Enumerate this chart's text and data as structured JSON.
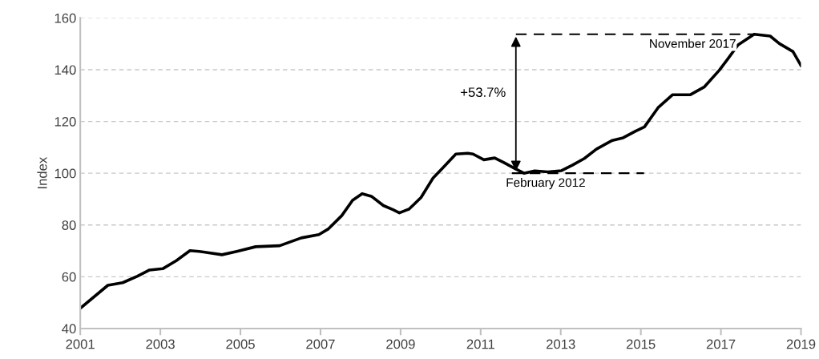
{
  "chart_data": {
    "type": "line",
    "ylabel": "Index",
    "x": [
      2001.0,
      2001.69,
      2002.06,
      2002.43,
      2002.73,
      2003.06,
      2003.4,
      2003.74,
      2003.97,
      2004.54,
      2004.91,
      2005.38,
      2005.98,
      2006.52,
      2006.96,
      2007.19,
      2007.53,
      2007.8,
      2008.04,
      2008.27,
      2008.57,
      2008.81,
      2008.97,
      2009.21,
      2009.51,
      2009.81,
      2010.05,
      2010.38,
      2010.68,
      2010.81,
      2011.08,
      2011.35,
      2011.58,
      2011.82,
      2012.08,
      2012.35,
      2012.68,
      2013.02,
      2013.29,
      2013.59,
      2013.89,
      2014.29,
      2014.56,
      2014.86,
      2015.09,
      2015.43,
      2015.79,
      2016.23,
      2016.59,
      2016.96,
      2017.16,
      2017.43,
      2017.83,
      2018.23,
      2018.46,
      2018.8,
      2019.0
    ],
    "series": [
      {
        "color": "#000000",
        "values": [
          47.8,
          56.7,
          57.7,
          60.2,
          62.6,
          63.1,
          66.2,
          70.1,
          69.8,
          68.5,
          69.8,
          71.6,
          72.0,
          75.0,
          76.3,
          78.4,
          83.6,
          89.5,
          92.1,
          91.1,
          87.5,
          85.9,
          84.7,
          86.1,
          90.6,
          98.1,
          102.0,
          107.4,
          107.7,
          107.4,
          105.2,
          105.9,
          104.1,
          102.1,
          100.0,
          100.9,
          100.5,
          101.0,
          103.1,
          105.7,
          109.3,
          112.7,
          113.7,
          116.2,
          117.9,
          125.3,
          130.3,
          130.3,
          133.4,
          139.8,
          143.9,
          149.6,
          153.7,
          153.0,
          150.1,
          147.0,
          141.6
        ]
      }
    ],
    "xlim": [
      2001,
      2019
    ],
    "xticks": [
      2001,
      2003,
      2005,
      2007,
      2009,
      2011,
      2013,
      2015,
      2017,
      2019
    ],
    "ylim": [
      40,
      160
    ],
    "yticks": [
      40,
      60,
      80,
      100,
      120,
      140,
      160
    ],
    "grid": "y",
    "marker": "none",
    "line_style": "solid",
    "legend": false,
    "annotations": [
      {
        "text": "November 2017",
        "x": 2017.83,
        "y": 153.7
      },
      {
        "text": "February 2012",
        "x": 2012.08,
        "y": 100
      },
      "+53.7%"
    ]
  }
}
